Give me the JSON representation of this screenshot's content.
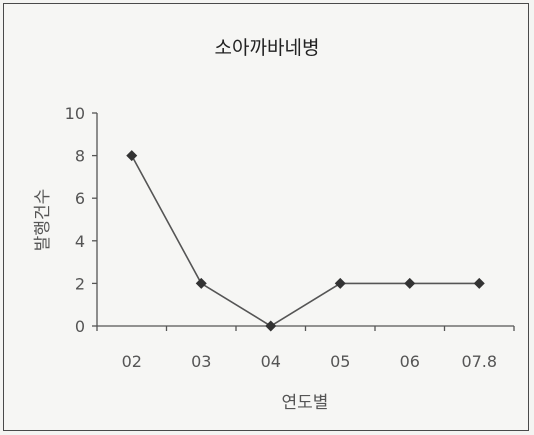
{
  "chart_data": {
    "type": "line",
    "title": "소아까바네병",
    "xlabel": "연도별",
    "ylabel": "발행건수",
    "categories": [
      "02",
      "03",
      "04",
      "05",
      "06",
      "07.8"
    ],
    "series": [
      {
        "values": [
          8,
          2,
          0,
          2,
          2,
          2
        ]
      }
    ],
    "ylim": [
      0,
      10
    ],
    "yticks": [
      "0",
      "2",
      "4",
      "6",
      "8",
      "10"
    ],
    "grid": false,
    "legend": "none",
    "marker": "diamond",
    "colors": {
      "line": "#555555",
      "marker": "#333333",
      "axis": "#555555"
    }
  }
}
